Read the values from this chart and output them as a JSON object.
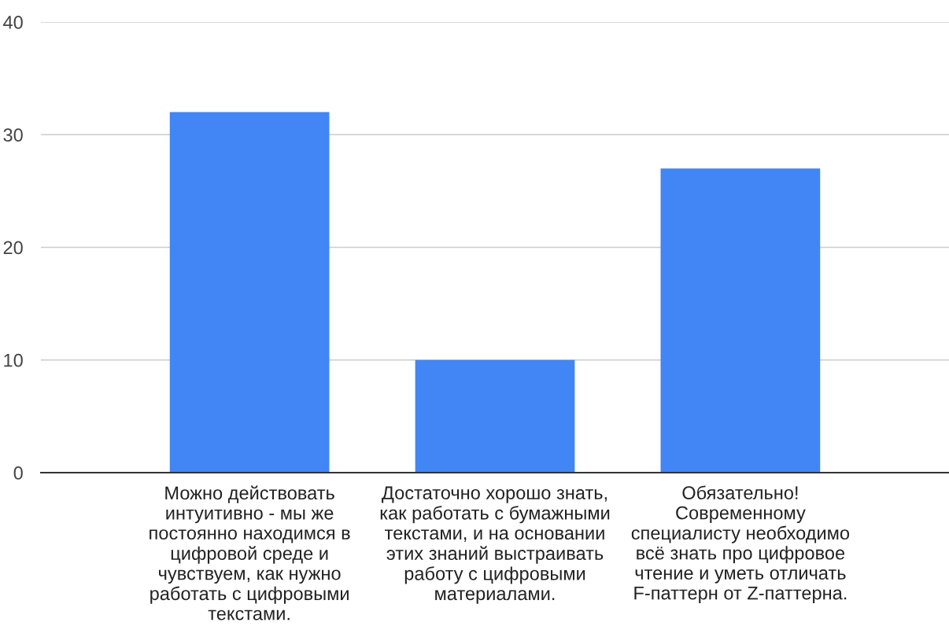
{
  "chart_data": {
    "type": "bar",
    "categories": [
      "Можно действовать\nинтуитивно - мы же\nпостоянно находимся в\nцифровой среде и\nчувствуем, как нужно\nработать с цифровыми\nтекстами.",
      "Достаточно хорошо знать,\nкак работать с бумажными\nтекстами, и на основании\nэтих знаний выстраивать\nработу с цифровыми\nматериалами.",
      "Обязательно!\nСовременному\nспециалисту необходимо\nвсё знать про цифровое\nчтение и уметь отличать\nF-паттерн от Z-паттерна."
    ],
    "values": [
      32,
      10,
      27
    ],
    "color": "#4285f4",
    "ylim": [
      0,
      40
    ],
    "yticks": [
      0,
      10,
      20,
      30,
      40
    ],
    "grid": "y"
  }
}
